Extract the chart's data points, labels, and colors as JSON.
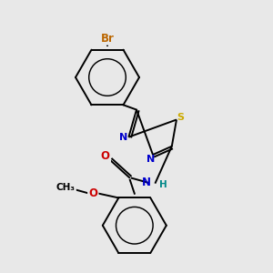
{
  "background_color": "#e8e8e8",
  "atom_colors": {
    "C": "#000000",
    "N": "#0000cc",
    "S": "#ccaa00",
    "O": "#cc0000",
    "Br": "#bb6600",
    "H": "#008888"
  },
  "bond_color": "#000000",
  "figsize": [
    3.0,
    3.0
  ],
  "dpi": 100
}
